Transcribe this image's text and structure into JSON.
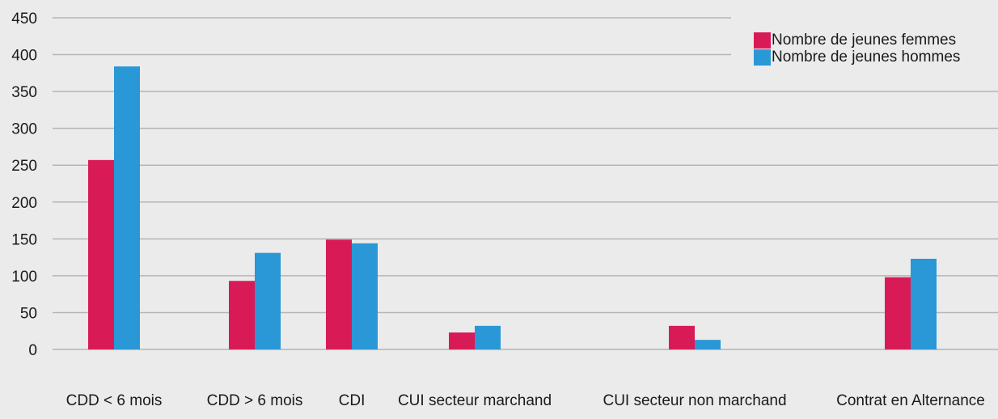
{
  "chart_data": {
    "type": "bar",
    "categories": [
      "CDD < 6 mois",
      "CDD > 6 mois",
      "CDI",
      "CUI secteur marchand",
      "CUI secteur non marchand",
      "Contrat en Alternance"
    ],
    "series": [
      {
        "name": "Nombre de jeunes femmes",
        "color": "#d81b57",
        "values": [
          257,
          93,
          149,
          23,
          32,
          98
        ]
      },
      {
        "name": "Nombre de jeunes hommes",
        "color": "#2a97d6",
        "values": [
          384,
          131,
          144,
          32,
          13,
          123
        ]
      }
    ],
    "yticks": [
      "0",
      "50",
      "100",
      "150",
      "200",
      "250",
      "300",
      "350",
      "400",
      "450"
    ],
    "ylim": [
      0,
      450
    ],
    "grid": true,
    "legend_position": "top-right",
    "background": "#ebebeb",
    "gridline_color": "#b5b5b5"
  }
}
